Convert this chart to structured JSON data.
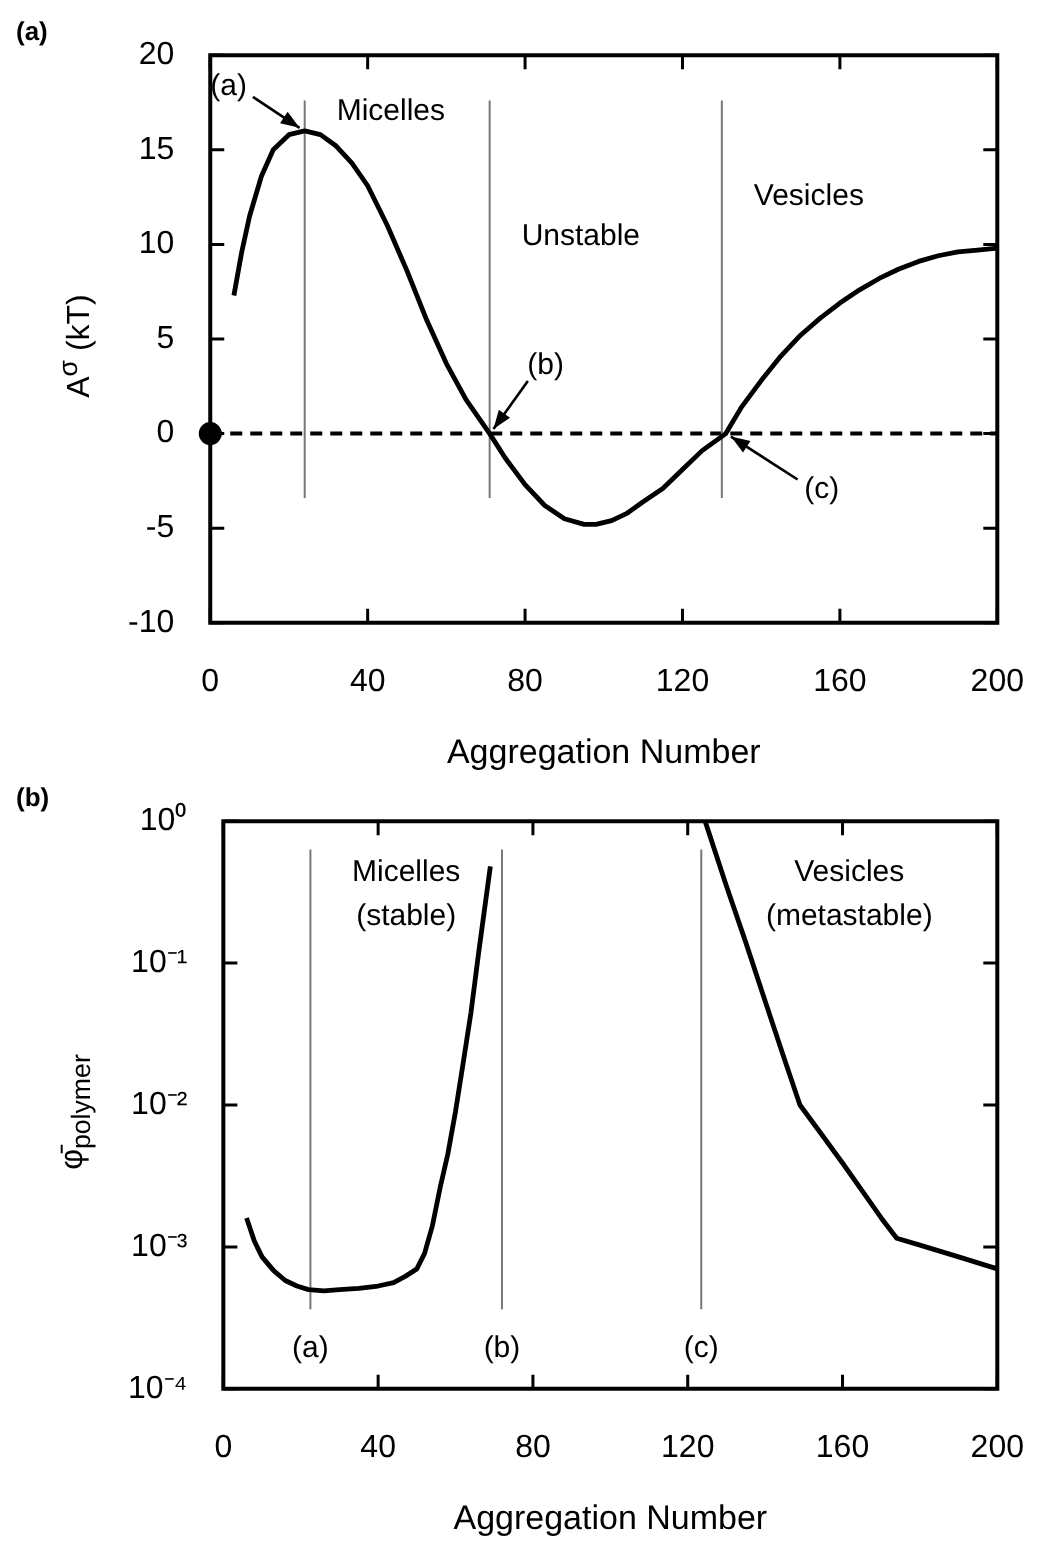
{
  "chart_data": [
    {
      "type": "line",
      "title": "(a)",
      "xlabel": "Aggregation Number",
      "ylabel": "A$^{σ}$ (kT)",
      "xlim": [
        0,
        200
      ],
      "ylim": [
        -10,
        20
      ],
      "xticks": [
        0,
        40,
        80,
        120,
        160,
        200
      ],
      "yticks": [
        -10,
        -5,
        0,
        5,
        10,
        15,
        20
      ],
      "series": [
        {
          "color": "#000000",
          "x": [
            6,
            8,
            10,
            13,
            16,
            20,
            24,
            28,
            32,
            36,
            40,
            45,
            50,
            55,
            60,
            65,
            71,
            75,
            80,
            85,
            90,
            95,
            98,
            102,
            106,
            110,
            115,
            120,
            125,
            131,
            135,
            140,
            145,
            150,
            155,
            160,
            165,
            170,
            175,
            180,
            185,
            190,
            195,
            200
          ],
          "values": [
            7.3,
            9.6,
            11.5,
            13.6,
            15,
            15.8,
            16,
            15.8,
            15.2,
            14.3,
            13.1,
            11,
            8.6,
            6,
            3.7,
            1.8,
            0,
            -1.3,
            -2.7,
            -3.8,
            -4.5,
            -4.8,
            -4.8,
            -4.6,
            -4.2,
            -3.6,
            -2.9,
            -1.9,
            -0.9,
            0,
            1.4,
            2.8,
            4.1,
            5.2,
            6.1,
            6.9,
            7.6,
            8.2,
            8.7,
            9.1,
            9.4,
            9.6,
            9.7,
            9.8
          ]
        },
        {
          "type": "scatter",
          "marker": "circle",
          "color": "#000000",
          "x": [
            0
          ],
          "values": [
            0
          ]
        }
      ],
      "ref_lines": [
        {
          "axis": "y",
          "value": 0,
          "line_style": "dashed"
        },
        {
          "axis": "x",
          "value": 24,
          "label": "Micelles"
        },
        {
          "axis": "x",
          "value": 71,
          "label": "Unstable"
        },
        {
          "axis": "x",
          "value": 130,
          "label": "Vesicles"
        }
      ],
      "annotations": [
        {
          "text": "(a)",
          "x": 24,
          "y": 16
        },
        {
          "text": "(b)",
          "x": 71,
          "y": 0
        },
        {
          "text": "(c)",
          "x": 131,
          "y": 0
        }
      ]
    },
    {
      "type": "line",
      "title": "(b)",
      "xlabel": "Aggregation Number",
      "ylabel": "φ̄$_{polymer}$",
      "log": "y",
      "xlim": [
        0,
        200
      ],
      "ylim": [
        0.0001,
        1
      ],
      "xticks": [
        0,
        40,
        80,
        120,
        160,
        200
      ],
      "yticks": [
        {
          "value": 0.0001,
          "label": "10⁻⁴"
        },
        {
          "value": 0.001,
          "label": "10⁻³"
        },
        {
          "value": 0.01,
          "label": "10⁻²"
        },
        {
          "value": 0.1,
          "label": "10⁻¹"
        },
        {
          "value": 1,
          "label": "10⁰"
        }
      ],
      "series": [
        {
          "color": "#000000",
          "x": [
            6,
            8,
            10,
            13,
            16,
            19,
            22,
            26,
            30,
            35,
            40,
            44,
            47,
            50,
            52,
            54,
            56,
            58,
            60,
            62,
            64,
            66,
            69,
            96,
            124.5,
            130,
            135,
            140,
            145,
            149,
            155,
            160,
            165,
            170,
            174,
            180,
            190,
            200
          ],
          "values": [
            0.0016,
            0.0011,
            0.00085,
            0.00068,
            0.00058,
            0.00053,
            0.0005,
            0.00049,
            0.0005,
            0.00051,
            0.00053,
            0.00056,
            0.00062,
            0.0007,
            0.0009,
            0.0014,
            0.0026,
            0.0045,
            0.009,
            0.02,
            0.045,
            0.12,
            0.48,
            null,
            1,
            0.35,
            0.14,
            0.054,
            0.021,
            0.01,
            0.006,
            0.0039,
            0.0025,
            0.0016,
            0.00115,
            0.00103,
            0.00085,
            0.0007
          ]
        }
      ],
      "ref_lines": [
        {
          "axis": "x",
          "value": 22.5,
          "label": "(a)"
        },
        {
          "axis": "x",
          "value": 72,
          "label": "(b)"
        },
        {
          "axis": "x",
          "value": 123.5,
          "label": "(c)"
        }
      ],
      "annotations": [
        "Micelles\n(stable)",
        "Vesicles\n(metastable)"
      ]
    }
  ]
}
